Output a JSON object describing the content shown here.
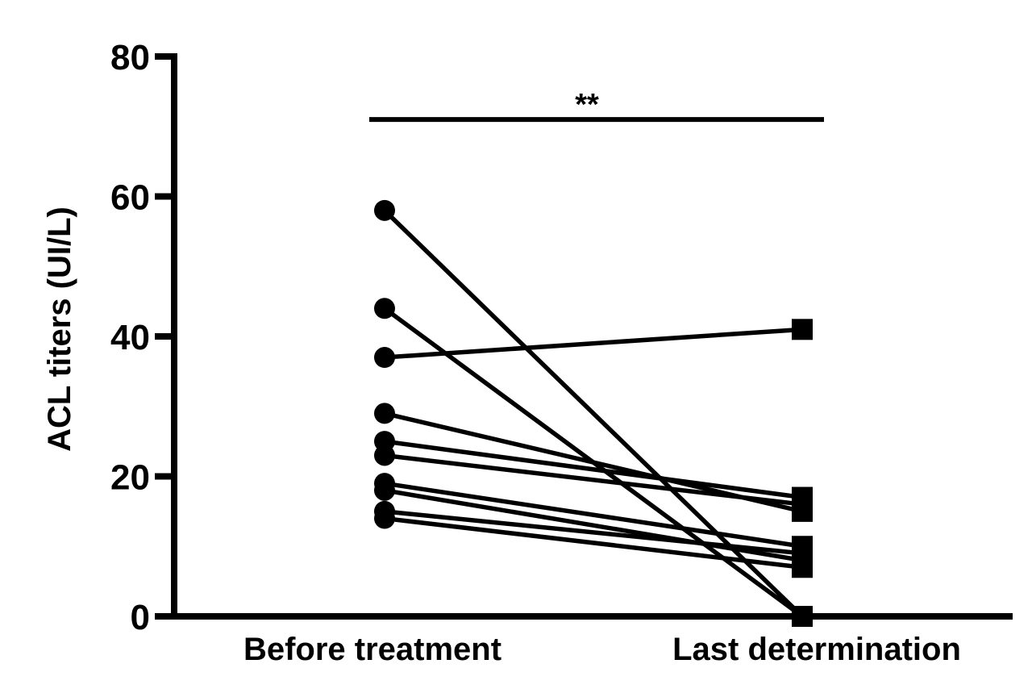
{
  "chart_data": {
    "type": "line",
    "title": "",
    "xlabel": "",
    "ylabel": "ACL titers (UI/L)",
    "categories": [
      "Before treatment",
      "Last determination"
    ],
    "ylim": [
      0,
      80
    ],
    "yticks": [
      "0",
      "20",
      "40",
      "60",
      "80"
    ],
    "grid": false,
    "legend": "none",
    "markers": {
      "before": "circle",
      "after": "square"
    },
    "paired_values": [
      [
        58,
        0
      ],
      [
        44,
        0
      ],
      [
        37,
        41
      ],
      [
        29,
        15
      ],
      [
        25,
        17
      ],
      [
        23,
        16
      ],
      [
        19,
        10
      ],
      [
        18,
        8
      ],
      [
        15,
        9
      ],
      [
        14,
        7
      ]
    ],
    "significance": {
      "label": "**",
      "from": "Before treatment",
      "to": "Last determination",
      "y": 71
    },
    "colors": {
      "ink": "#000000",
      "background": "#ffffff"
    }
  }
}
